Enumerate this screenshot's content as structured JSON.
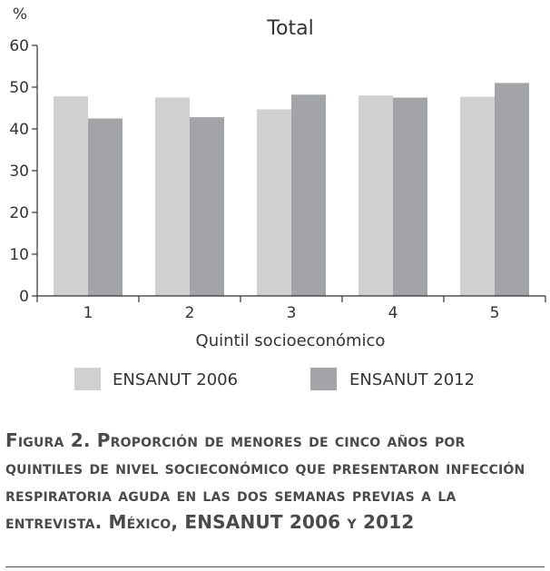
{
  "chart_data": {
    "type": "bar",
    "title": "Total",
    "ylabel": "%",
    "xlabel": "Quintil socioeconómico",
    "categories": [
      "1",
      "2",
      "3",
      "4",
      "5"
    ],
    "ylim": [
      0,
      60
    ],
    "yticks": [
      "0",
      "10",
      "20",
      "30",
      "40",
      "50",
      "60"
    ],
    "grid": false,
    "legend_position": "bottom",
    "series": [
      {
        "name": "ENSANUT 2006",
        "color": "#cfd0d2",
        "values": [
          47.8,
          47.5,
          44.7,
          48.0,
          47.7
        ]
      },
      {
        "name": "ENSANUT 2012",
        "color": "#a2a4a7",
        "values": [
          42.5,
          42.8,
          48.2,
          47.5,
          51.0
        ]
      }
    ]
  },
  "caption": "Figura 2. Proporción de menores de cinco años por quintiles de nivel socieconómico que presentaron infección respiratoria aguda en las dos semanas previas a la entrevista. México, ENSANUT 2006 y 2012"
}
